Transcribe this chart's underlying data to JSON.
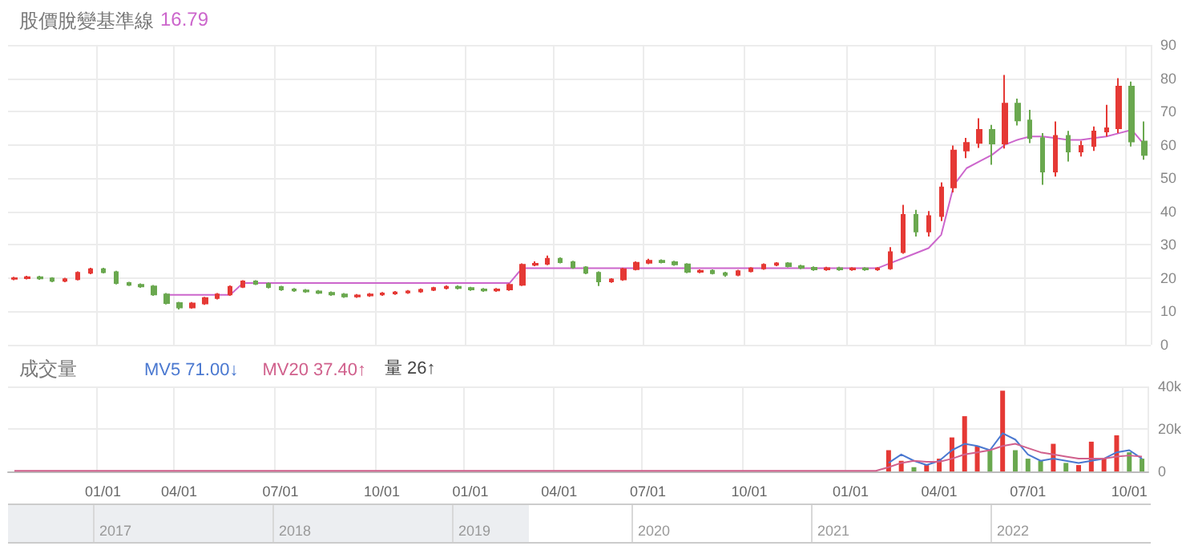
{
  "chart_data": [
    {
      "type": "candlestick",
      "title": "股價脫變基準線",
      "annotations": [
        "16.79"
      ],
      "categories": [
        null,
        null,
        null,
        null,
        null,
        null,
        null,
        null,
        null,
        null,
        null,
        null,
        null,
        null,
        null,
        null,
        null,
        null,
        null,
        null,
        null,
        null,
        null,
        null,
        null,
        null,
        null,
        null,
        null,
        null,
        null,
        null,
        null,
        null,
        null,
        null,
        null,
        null,
        null,
        null,
        null,
        null,
        null,
        null,
        null,
        null,
        null,
        null,
        null,
        null,
        null,
        null,
        null,
        null,
        null,
        null,
        null,
        null,
        null,
        null,
        null,
        null,
        null,
        null,
        null,
        null,
        null,
        null,
        null,
        null,
        null,
        null,
        null,
        null,
        null,
        null,
        null,
        null,
        null,
        null,
        null,
        null,
        null,
        null,
        null,
        null,
        null,
        null,
        null,
        null
      ],
      "ohlc": [
        [
          19.8,
          20.4,
          19.4,
          20.0
        ],
        [
          20.0,
          20.7,
          19.6,
          20.3
        ],
        [
          20.3,
          20.7,
          19.5,
          19.9
        ],
        [
          19.9,
          20.3,
          18.8,
          19.2
        ],
        [
          19.2,
          20.1,
          18.8,
          19.7
        ],
        [
          19.7,
          22.0,
          19.3,
          21.6
        ],
        [
          21.6,
          23.1,
          21.2,
          22.7
        ],
        [
          22.7,
          23.1,
          21.4,
          21.8
        ],
        [
          21.8,
          22.2,
          18.1,
          18.5
        ],
        [
          18.5,
          18.9,
          17.6,
          18.0
        ],
        [
          18.0,
          18.4,
          17.1,
          17.5
        ],
        [
          17.5,
          17.9,
          14.7,
          15.1
        ],
        [
          15.1,
          15.5,
          12.1,
          12.5
        ],
        [
          12.5,
          12.9,
          10.6,
          11.2
        ],
        [
          11.2,
          12.8,
          10.8,
          12.4
        ],
        [
          12.4,
          14.4,
          12.0,
          14.0
        ],
        [
          14.0,
          15.5,
          13.6,
          15.1
        ],
        [
          15.1,
          17.8,
          14.7,
          17.4
        ],
        [
          17.4,
          19.4,
          17.0,
          19.0
        ],
        [
          19.0,
          19.4,
          17.9,
          18.3
        ],
        [
          18.3,
          18.7,
          16.9,
          17.3
        ],
        [
          17.3,
          17.7,
          16.2,
          16.6
        ],
        [
          16.6,
          17.0,
          15.9,
          16.3
        ],
        [
          16.3,
          16.7,
          15.6,
          16.0
        ],
        [
          16.0,
          16.4,
          15.2,
          15.6
        ],
        [
          15.6,
          16.0,
          14.7,
          15.1
        ],
        [
          15.1,
          15.5,
          14.1,
          14.5
        ],
        [
          14.5,
          15.2,
          14.1,
          14.8
        ],
        [
          14.8,
          15.5,
          14.4,
          15.1
        ],
        [
          15.1,
          15.8,
          14.7,
          15.4
        ],
        [
          15.4,
          16.1,
          15.0,
          15.7
        ],
        [
          15.7,
          16.4,
          15.3,
          16.0
        ],
        [
          16.0,
          16.9,
          15.6,
          16.5
        ],
        [
          16.5,
          17.4,
          16.1,
          17.0
        ],
        [
          17.0,
          17.8,
          16.6,
          17.4
        ],
        [
          17.4,
          17.8,
          16.6,
          17.0
        ],
        [
          17.0,
          17.4,
          16.2,
          16.6
        ],
        [
          16.6,
          17.0,
          15.9,
          16.3
        ],
        [
          16.3,
          17.0,
          15.9,
          16.6
        ],
        [
          16.6,
          18.4,
          16.2,
          18.0
        ],
        [
          18.0,
          24.4,
          17.6,
          24.0
        ],
        [
          24.0,
          25.0,
          23.6,
          24.3
        ],
        [
          24.3,
          26.8,
          23.9,
          25.8
        ],
        [
          25.8,
          26.2,
          24.4,
          24.8
        ],
        [
          24.8,
          25.2,
          22.8,
          23.2
        ],
        [
          23.2,
          23.6,
          21.2,
          21.6
        ],
        [
          21.6,
          22.0,
          17.6,
          19.0
        ],
        [
          19.0,
          20.0,
          18.6,
          19.6
        ],
        [
          19.6,
          23.1,
          19.2,
          22.7
        ],
        [
          22.7,
          25.0,
          22.3,
          24.6
        ],
        [
          24.6,
          25.8,
          24.2,
          25.2
        ],
        [
          25.2,
          25.6,
          24.4,
          24.8
        ],
        [
          24.8,
          25.2,
          23.7,
          24.1
        ],
        [
          24.1,
          24.5,
          21.5,
          21.9
        ],
        [
          21.9,
          22.6,
          21.5,
          22.2
        ],
        [
          22.2,
          22.6,
          21.1,
          21.5
        ],
        [
          21.5,
          21.9,
          20.4,
          21.0
        ],
        [
          21.0,
          22.5,
          20.6,
          22.1
        ],
        [
          22.1,
          23.3,
          21.7,
          22.9
        ],
        [
          22.9,
          24.4,
          22.5,
          24.0
        ],
        [
          24.0,
          24.8,
          23.6,
          24.4
        ],
        [
          24.4,
          24.8,
          23.2,
          23.6
        ],
        [
          23.6,
          24.0,
          22.7,
          23.1
        ],
        [
          23.1,
          23.5,
          22.2,
          22.6
        ],
        [
          22.6,
          23.4,
          22.2,
          23.0
        ],
        [
          23.0,
          23.4,
          22.2,
          22.6
        ],
        [
          22.6,
          23.3,
          22.2,
          22.9
        ],
        [
          22.9,
          23.3,
          22.2,
          22.6
        ],
        [
          22.6,
          23.3,
          22.2,
          22.9
        ],
        [
          22.9,
          29.3,
          22.5,
          27.8
        ],
        [
          27.8,
          42.0,
          27.3,
          39.0
        ],
        [
          39.0,
          40.5,
          32.5,
          34.0
        ],
        [
          34.0,
          40.1,
          32.5,
          38.6
        ],
        [
          38.6,
          48.7,
          37.1,
          47.2
        ],
        [
          47.2,
          59.8,
          45.7,
          58.3
        ],
        [
          58.3,
          62.1,
          56.0,
          60.6
        ],
        [
          60.6,
          68.0,
          59.1,
          64.5
        ],
        [
          64.5,
          66.0,
          54.0,
          60.4
        ],
        [
          60.4,
          81.0,
          58.9,
          72.4
        ],
        [
          72.4,
          73.9,
          65.8,
          67.3
        ],
        [
          67.3,
          70.5,
          60.5,
          62.0
        ],
        [
          62.0,
          63.5,
          48.0,
          52.0
        ],
        [
          52.0,
          67.0,
          50.5,
          62.7
        ],
        [
          62.7,
          64.2,
          55.0,
          58.0
        ],
        [
          58.0,
          61.2,
          56.5,
          59.7
        ],
        [
          59.7,
          65.5,
          58.2,
          64.0
        ],
        [
          64.0,
          72.0,
          62.5,
          65.0
        ],
        [
          65.0,
          80.0,
          63.5,
          77.5
        ],
        [
          77.5,
          79.0,
          59.5,
          61.0
        ],
        [
          61.0,
          67.0,
          55.5,
          57.0
        ]
      ],
      "colors": [
        "#e53935",
        "#e53935",
        "#6aa84f",
        "#6aa84f",
        "#e53935",
        "#e53935",
        "#e53935",
        "#6aa84f",
        "#6aa84f",
        "#6aa84f",
        "#6aa84f",
        "#6aa84f",
        "#6aa84f",
        "#6aa84f",
        "#e53935",
        "#e53935",
        "#e53935",
        "#e53935",
        "#e53935",
        "#6aa84f",
        "#6aa84f",
        "#6aa84f",
        "#6aa84f",
        "#6aa84f",
        "#6aa84f",
        "#6aa84f",
        "#6aa84f",
        "#e53935",
        "#e53935",
        "#e53935",
        "#e53935",
        "#e53935",
        "#e53935",
        "#e53935",
        "#e53935",
        "#6aa84f",
        "#6aa84f",
        "#6aa84f",
        "#e53935",
        "#e53935",
        "#e53935",
        "#e53935",
        "#e53935",
        "#6aa84f",
        "#6aa84f",
        "#6aa84f",
        "#6aa84f",
        "#e53935",
        "#e53935",
        "#e53935",
        "#e53935",
        "#6aa84f",
        "#6aa84f",
        "#6aa84f",
        "#e53935",
        "#6aa84f",
        "#6aa84f",
        "#e53935",
        "#e53935",
        "#e53935",
        "#e53935",
        "#6aa84f",
        "#6aa84f",
        "#6aa84f",
        "#e53935",
        "#6aa84f",
        "#e53935",
        "#6aa84f",
        "#e53935",
        "#e53935",
        "#e53935",
        "#6aa84f",
        "#e53935",
        "#e53935",
        "#e53935",
        "#e53935",
        "#e53935",
        "#6aa84f",
        "#e53935",
        "#6aa84f",
        "#6aa84f",
        "#6aa84f",
        "#e53935",
        "#6aa84f",
        "#e53935",
        "#e53935",
        "#e53935",
        "#e53935",
        "#6aa84f",
        "#6aa84f"
      ],
      "series": [
        {
          "type": "line",
          "color": "#cc66cc",
          "values": [
            null,
            null,
            null,
            null,
            null,
            null,
            null,
            null,
            null,
            null,
            null,
            null,
            15,
            15,
            15,
            15,
            15,
            15,
            18.5,
            18.5,
            18.5,
            18.5,
            18.5,
            18.5,
            18.5,
            18.5,
            18.5,
            18.5,
            18.5,
            18.5,
            18.5,
            18.5,
            18.5,
            18.5,
            18.5,
            18.5,
            18.5,
            18.5,
            18.5,
            18.5,
            23,
            23,
            23,
            23,
            23,
            23,
            23,
            23,
            23,
            23,
            23,
            23,
            23,
            23,
            23,
            23,
            23,
            23,
            23,
            23,
            23,
            23,
            23,
            23,
            23,
            23,
            23,
            23,
            23,
            24.5,
            26,
            27.5,
            29,
            33,
            48,
            53,
            55,
            57,
            60,
            61.5,
            62.5,
            62.5,
            62,
            61.5,
            61.5,
            62,
            62.5,
            63.5,
            64.5,
            60
          ]
        }
      ],
      "ylim": [
        0,
        90
      ],
      "yticks": [
        0,
        10,
        20,
        30,
        40,
        50,
        60,
        70,
        80,
        90
      ],
      "grid": true,
      "tick_labels": "y",
      "marker": "none"
    },
    {
      "type": "bar",
      "title": "成交量",
      "annotations": [
        "量 26↑",
        "2017",
        "2018",
        "2019",
        "2020",
        "2021",
        "2022"
      ],
      "legend": "top left",
      "categories": [
        null,
        null,
        null,
        null,
        null,
        null,
        null,
        "01/01",
        null,
        null,
        null,
        null,
        null,
        "04/01",
        null,
        null,
        null,
        null,
        null,
        null,
        null,
        "07/01",
        null,
        null,
        null,
        null,
        null,
        null,
        null,
        "10/01",
        null,
        null,
        null,
        null,
        null,
        null,
        "01/01",
        null,
        null,
        null,
        null,
        null,
        null,
        "04/01",
        null,
        null,
        null,
        null,
        null,
        null,
        "07/01",
        null,
        null,
        null,
        null,
        null,
        null,
        null,
        "10/01",
        null,
        null,
        null,
        null,
        null,
        null,
        null,
        "01/01",
        null,
        null,
        null,
        null,
        null,
        null,
        "04/01",
        null,
        null,
        null,
        null,
        null,
        null,
        "07/01",
        null,
        null,
        null,
        null,
        null,
        null,
        null,
        "10/01",
        null
      ],
      "series": [
        {
          "type": "bar",
          "values": [
            null,
            null,
            null,
            null,
            null,
            null,
            null,
            null,
            null,
            null,
            null,
            null,
            null,
            null,
            null,
            null,
            null,
            null,
            null,
            null,
            null,
            null,
            null,
            null,
            null,
            null,
            null,
            null,
            null,
            null,
            null,
            null,
            null,
            null,
            null,
            null,
            null,
            null,
            null,
            null,
            null,
            null,
            null,
            null,
            null,
            null,
            null,
            null,
            null,
            null,
            null,
            null,
            null,
            null,
            null,
            null,
            null,
            null,
            null,
            null,
            null,
            null,
            null,
            null,
            null,
            null,
            null,
            null,
            null,
            10000,
            5000,
            2000,
            3000,
            6000,
            16000,
            26000,
            12000,
            10000,
            38000,
            10000,
            6000,
            5000,
            13000,
            4000,
            3000,
            14000,
            6000,
            17000,
            9000,
            6000
          ],
          "colors": [
            "#e53935",
            "#e53935",
            "#6aa84f",
            "#6aa84f",
            "#e53935",
            "#e53935",
            "#e53935",
            "#6aa84f",
            "#6aa84f",
            "#6aa84f",
            "#6aa84f",
            "#6aa84f",
            "#6aa84f",
            "#6aa84f",
            "#e53935",
            "#e53935",
            "#e53935",
            "#e53935",
            "#e53935",
            "#6aa84f",
            "#6aa84f",
            "#6aa84f",
            "#6aa84f",
            "#6aa84f",
            "#6aa84f",
            "#6aa84f",
            "#6aa84f",
            "#e53935",
            "#e53935",
            "#e53935",
            "#e53935",
            "#e53935",
            "#e53935",
            "#e53935",
            "#e53935",
            "#6aa84f",
            "#6aa84f",
            "#6aa84f",
            "#e53935",
            "#e53935",
            "#e53935",
            "#e53935",
            "#e53935",
            "#6aa84f",
            "#6aa84f",
            "#6aa84f",
            "#6aa84f",
            "#e53935",
            "#e53935",
            "#e53935",
            "#e53935",
            "#6aa84f",
            "#6aa84f",
            "#6aa84f",
            "#e53935",
            "#6aa84f",
            "#6aa84f",
            "#e53935",
            "#e53935",
            "#e53935",
            "#e53935",
            "#6aa84f",
            "#6aa84f",
            "#6aa84f",
            "#e53935",
            "#6aa84f",
            "#e53935",
            "#6aa84f",
            "#e53935",
            "#e53935",
            "#e53935",
            "#6aa84f",
            "#e53935",
            "#e53935",
            "#e53935",
            "#e53935",
            "#e53935",
            "#6aa84f",
            "#e53935",
            "#6aa84f",
            "#6aa84f",
            "#6aa84f",
            "#e53935",
            "#6aa84f",
            "#e53935",
            "#e53935",
            "#e53935",
            "#e53935",
            "#6aa84f",
            "#6aa84f"
          ]
        },
        {
          "type": "line",
          "name": "MV5 71.00↓",
          "color": "#4a78d0",
          "values": [
            null,
            null,
            null,
            null,
            null,
            null,
            null,
            null,
            null,
            null,
            null,
            null,
            null,
            null,
            null,
            null,
            null,
            null,
            null,
            null,
            null,
            null,
            null,
            null,
            null,
            null,
            null,
            null,
            null,
            null,
            null,
            null,
            null,
            null,
            null,
            null,
            null,
            null,
            null,
            null,
            null,
            null,
            null,
            null,
            null,
            null,
            null,
            null,
            null,
            null,
            null,
            null,
            null,
            null,
            null,
            null,
            null,
            null,
            null,
            null,
            null,
            null,
            null,
            null,
            null,
            null,
            null,
            null,
            null,
            4000,
            8000,
            5000,
            3000,
            5000,
            10000,
            13000,
            12000,
            10000,
            18000,
            15000,
            8000,
            5000,
            6000,
            5000,
            4000,
            5000,
            6000,
            9000,
            10000,
            6000
          ]
        },
        {
          "type": "line",
          "name": "MV20 37.40↑",
          "color": "#d0608c",
          "values": [
            300,
            300,
            300,
            300,
            300,
            300,
            300,
            300,
            300,
            300,
            300,
            300,
            300,
            300,
            300,
            300,
            300,
            300,
            300,
            300,
            300,
            300,
            300,
            300,
            300,
            300,
            300,
            300,
            300,
            300,
            300,
            300,
            300,
            300,
            300,
            300,
            300,
            300,
            300,
            300,
            300,
            300,
            300,
            300,
            300,
            300,
            300,
            300,
            300,
            300,
            300,
            300,
            300,
            300,
            300,
            300,
            300,
            300,
            300,
            300,
            300,
            300,
            300,
            300,
            300,
            300,
            300,
            300,
            300,
            2000,
            4000,
            5000,
            4500,
            4500,
            6000,
            8000,
            9000,
            10000,
            12000,
            13000,
            11000,
            9000,
            8000,
            7000,
            6000,
            6000,
            6000,
            7000,
            7500,
            7000
          ]
        }
      ],
      "ylim": [
        0,
        40000
      ],
      "yticks": [
        0,
        {
          "value": 20000,
          "label": "20k"
        },
        {
          "value": 40000,
          "label": "40k"
        }
      ],
      "grid": true,
      "marker": "none"
    }
  ]
}
